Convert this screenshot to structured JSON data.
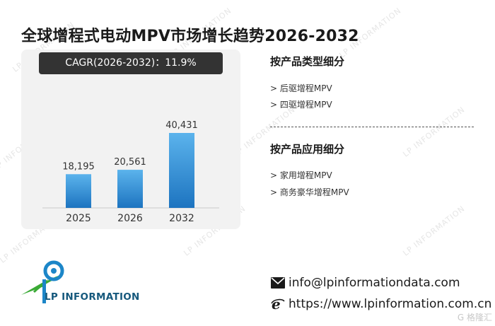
{
  "header": {
    "title": "全球增程式电动MPV市场增长趋势2026-2032"
  },
  "cagr": {
    "label": "CAGR(2026-2032)：11.9%"
  },
  "chart_data": {
    "type": "bar",
    "categories": [
      "2025",
      "2026",
      "2032"
    ],
    "values": [
      18195,
      20561,
      40431
    ],
    "data_labels": [
      "18,195",
      "20,561",
      "40,431"
    ],
    "title": "",
    "xlabel": "",
    "ylabel": "",
    "ylim": [
      0,
      45000
    ],
    "grid": false,
    "legend": "none",
    "colors": {
      "bar_top": "#5bb3ec",
      "bar_bottom": "#1d74c0",
      "axis": "#c9c9c9",
      "panel": "#f2f2f2"
    }
  },
  "segments": {
    "by_type": {
      "title": "按产品类型细分",
      "items": [
        "> 后驱增程MPV",
        "> 四驱增程MPV"
      ]
    },
    "by_application": {
      "title": "按产品应用细分",
      "items": [
        "> 家用增程MPV",
        "> 商务豪华增程MPV"
      ]
    }
  },
  "logo": {
    "text": "LP INFORMATION",
    "colors": {
      "green": "#3aaa35",
      "blue": "#1c86c8",
      "navy": "#15587c"
    }
  },
  "contact": {
    "email": "info@lpinformationdata.com",
    "email_icon": "envelope-icon",
    "website": "https://www.lpinformation.com.cn",
    "website_icon": "browser-e-icon"
  },
  "watermark": {
    "text": "LP INFORMATION",
    "corner_text": "G 格隆汇"
  }
}
